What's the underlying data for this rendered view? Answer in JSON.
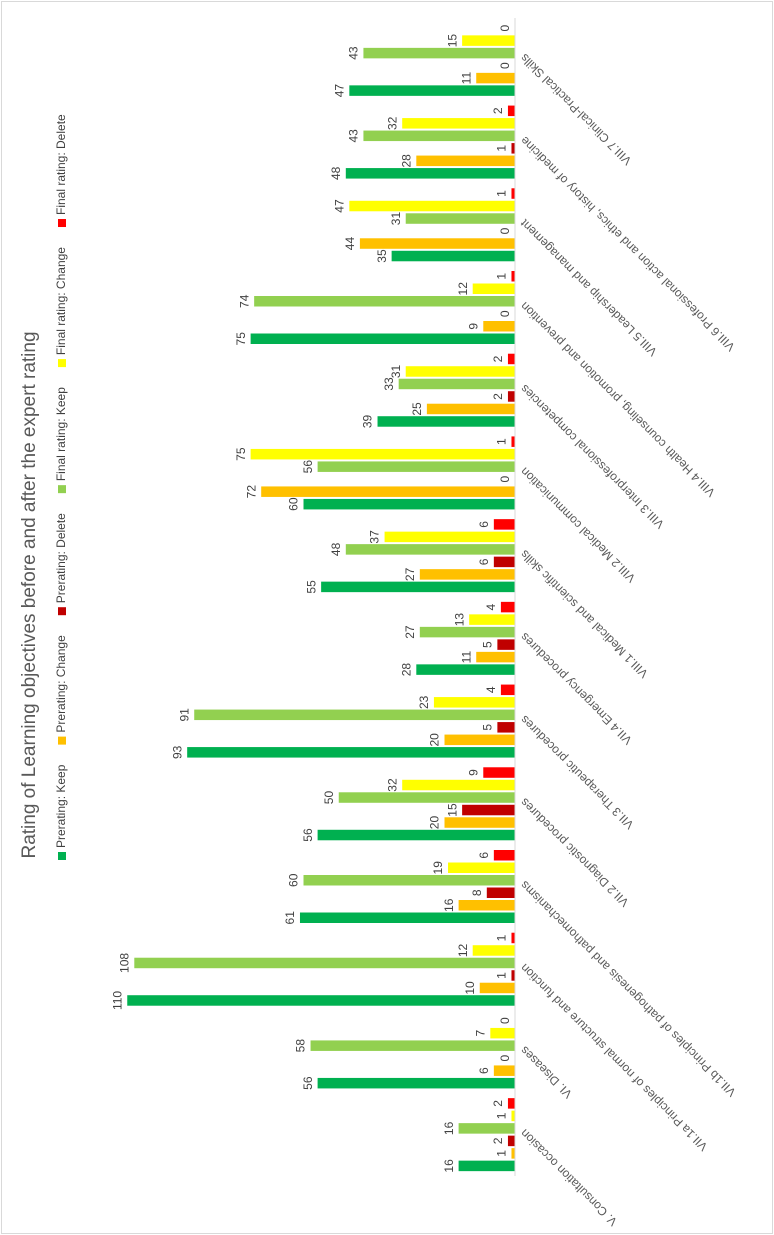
{
  "chart_data": {
    "type": "bar",
    "title": "Rating of Learning objectives before and after the expert rating",
    "categories": [
      "V. Consultation occasion",
      "VI. Diseases",
      "VII.1a Principles of normal structure and function",
      "VII.1b Principles of pathogenesis and pathomechanisms",
      "VII.2 Diagnostic procedures",
      "VII.3 Therapeutic procedures",
      "VII.4 Emergency procedures",
      "VIII.1 Medical and scientific skills",
      "VIII.2 Medical communication",
      "VIII.3 Interprofessional competencies",
      "VIII.4 Health counseling, promotion and prevention",
      "VIII.5 Leadership and management",
      "VIII.6 Professional action and ethics, history of medicine",
      "VIII.7 Clinical-Practical Skills"
    ],
    "series": [
      {
        "name": "Prerating: Keep",
        "color": "#00b050",
        "values": [
          16,
          56,
          110,
          61,
          56,
          93,
          28,
          55,
          60,
          39,
          75,
          35,
          48,
          47
        ]
      },
      {
        "name": "Prerating: Change",
        "color": "#ffc000",
        "values": [
          1,
          6,
          10,
          16,
          20,
          20,
          11,
          27,
          72,
          25,
          9,
          44,
          28,
          11
        ]
      },
      {
        "name": "Prerating: Delete",
        "color": "#c00000",
        "values": [
          2,
          0,
          1,
          8,
          15,
          5,
          5,
          6,
          0,
          2,
          0,
          0,
          1,
          0
        ]
      },
      {
        "name": "Final rating: Keep",
        "color": "#92d050",
        "values": [
          16,
          58,
          108,
          60,
          50,
          91,
          27,
          48,
          56,
          33,
          74,
          31,
          43,
          43
        ]
      },
      {
        "name": "Final rating: Change",
        "color": "#ffff00",
        "values": [
          1,
          7,
          12,
          19,
          32,
          23,
          13,
          37,
          75,
          31,
          12,
          47,
          32,
          15
        ]
      },
      {
        "name": "Final rating: Delete",
        "color": "#ff0000",
        "values": [
          2,
          0,
          1,
          6,
          9,
          4,
          4,
          6,
          1,
          2,
          1,
          1,
          2,
          0
        ]
      }
    ],
    "ylim": [
      0,
      120
    ],
    "legend": "top",
    "grid": false
  }
}
